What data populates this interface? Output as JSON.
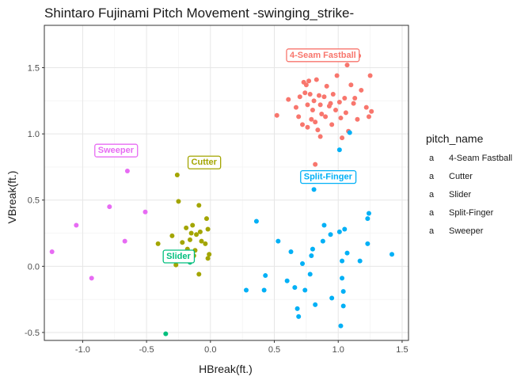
{
  "chart_data": {
    "type": "scatter",
    "title": "Shintaro Fujinami Pitch Movement -swinging_strike-",
    "xlabel": "HBreak(ft.)",
    "ylabel": "VBreak(ft.)",
    "xlim": [
      -1.3,
      1.55
    ],
    "ylim": [
      -0.56,
      1.82
    ],
    "xticks": [
      -1.0,
      -0.5,
      0.0,
      0.5,
      1.0,
      1.5
    ],
    "xtick_labels": [
      "-1.0",
      "-0.5",
      "0.0",
      "0.5",
      "1.0",
      "1.5"
    ],
    "yticks": [
      -0.5,
      0.0,
      0.5,
      1.0,
      1.5
    ],
    "ytick_labels": [
      "-0.5",
      "0.0",
      "0.5",
      "1.0",
      "1.5"
    ],
    "grid": true,
    "legend": {
      "title": "pitch_name",
      "position": "right"
    },
    "series": [
      {
        "name": "4-Seam Fastball",
        "color": "#F8766D",
        "label": {
          "text": "4-Seam Fastball",
          "x": 0.88,
          "y": 1.6
        },
        "points": [
          [
            1.16,
            1.59
          ],
          [
            1.07,
            1.52
          ],
          [
            1.25,
            1.44
          ],
          [
            0.52,
            1.14
          ],
          [
            0.61,
            1.26
          ],
          [
            0.67,
            1.2
          ],
          [
            0.69,
            1.13
          ],
          [
            0.72,
            1.07
          ],
          [
            0.74,
            1.31
          ],
          [
            0.75,
            1.37
          ],
          [
            0.76,
            1.22
          ],
          [
            0.77,
            1.4
          ],
          [
            0.78,
            1.3
          ],
          [
            0.79,
            1.11
          ],
          [
            0.8,
            1.18
          ],
          [
            0.81,
            1.25
          ],
          [
            0.82,
            1.09
          ],
          [
            0.83,
            1.41
          ],
          [
            0.84,
            1.03
          ],
          [
            0.85,
            1.29
          ],
          [
            0.86,
            1.22
          ],
          [
            0.87,
            1.15
          ],
          [
            0.89,
            1.28
          ],
          [
            0.9,
            1.13
          ],
          [
            0.91,
            1.36
          ],
          [
            0.93,
            1.21
          ],
          [
            0.95,
            1.07
          ],
          [
            0.96,
            1.3
          ],
          [
            0.98,
            1.18
          ],
          [
            0.99,
            1.44
          ],
          [
            1.01,
            1.24
          ],
          [
            1.02,
            1.12
          ],
          [
            1.03,
            0.97
          ],
          [
            1.05,
            1.27
          ],
          [
            1.06,
            1.16
          ],
          [
            1.08,
            1.02
          ],
          [
            1.1,
            1.37
          ],
          [
            1.12,
            1.23
          ],
          [
            1.15,
            1.11
          ],
          [
            1.18,
            1.33
          ],
          [
            1.22,
            1.2
          ],
          [
            1.26,
            1.17
          ],
          [
            1.24,
            1.13
          ],
          [
            0.73,
            1.39
          ],
          [
            0.7,
            1.28
          ],
          [
            0.86,
            0.98
          ],
          [
            0.82,
            0.77
          ],
          [
            0.76,
            1.05
          ],
          [
            0.94,
            1.23
          ],
          [
            1.13,
            1.27
          ]
        ]
      },
      {
        "name": "Cutter",
        "color": "#A3A500",
        "label": {
          "text": "Cutter",
          "x": -0.05,
          "y": 0.79
        },
        "points": [
          [
            -0.26,
            0.69
          ],
          [
            -0.25,
            0.49
          ],
          [
            -0.09,
            0.46
          ],
          [
            -0.03,
            0.36
          ],
          [
            -0.19,
            0.29
          ],
          [
            -0.14,
            0.31
          ],
          [
            -0.02,
            0.28
          ],
          [
            -0.11,
            0.24
          ],
          [
            -0.08,
            0.26
          ],
          [
            -0.16,
            0.2
          ],
          [
            -0.04,
            0.17
          ],
          [
            -0.22,
            0.18
          ],
          [
            -0.3,
            0.23
          ],
          [
            -0.12,
            0.12
          ],
          [
            -0.18,
            0.13
          ],
          [
            -0.13,
            0.08
          ],
          [
            -0.01,
            0.09
          ],
          [
            -0.02,
            0.06
          ],
          [
            -0.41,
            0.17
          ],
          [
            -0.24,
            0.05
          ],
          [
            -0.27,
            0.01
          ],
          [
            -0.09,
            -0.06
          ],
          [
            -0.15,
            0.25
          ],
          [
            -0.07,
            0.19
          ]
        ]
      },
      {
        "name": "Slider",
        "color": "#00BF7D",
        "label": {
          "text": "Slider",
          "x": -0.25,
          "y": 0.08
        },
        "points": [
          [
            -0.35,
            -0.51
          ],
          [
            -0.16,
            0.03
          ],
          [
            -0.28,
            0.06
          ]
        ]
      },
      {
        "name": "Split-Finger",
        "color": "#00B0F6",
        "label": {
          "text": "Split-Finger",
          "x": 0.92,
          "y": 0.68
        },
        "points": [
          [
            1.09,
            1.01
          ],
          [
            1.01,
            0.88
          ],
          [
            0.81,
            0.58
          ],
          [
            1.24,
            0.4
          ],
          [
            1.23,
            0.36
          ],
          [
            0.36,
            0.34
          ],
          [
            1.01,
            0.26
          ],
          [
            0.94,
            0.24
          ],
          [
            1.05,
            0.28
          ],
          [
            0.53,
            0.19
          ],
          [
            1.23,
            0.17
          ],
          [
            0.88,
            0.19
          ],
          [
            0.63,
            0.11
          ],
          [
            0.8,
            0.13
          ],
          [
            0.79,
            0.08
          ],
          [
            1.07,
            0.1
          ],
          [
            1.42,
            0.09
          ],
          [
            1.03,
            0.04
          ],
          [
            1.17,
            0.04
          ],
          [
            0.72,
            0.02
          ],
          [
            0.43,
            -0.07
          ],
          [
            0.6,
            -0.11
          ],
          [
            0.78,
            -0.06
          ],
          [
            1.03,
            -0.09
          ],
          [
            0.28,
            -0.18
          ],
          [
            0.42,
            -0.18
          ],
          [
            0.66,
            -0.16
          ],
          [
            0.74,
            -0.18
          ],
          [
            1.04,
            -0.19
          ],
          [
            0.95,
            -0.24
          ],
          [
            0.82,
            -0.29
          ],
          [
            0.68,
            -0.32
          ],
          [
            1.04,
            -0.3
          ],
          [
            0.69,
            -0.38
          ],
          [
            1.02,
            -0.45
          ],
          [
            0.89,
            0.31
          ]
        ]
      },
      {
        "name": "Sweeper",
        "color": "#E76BF3",
        "label": {
          "text": "Sweeper",
          "x": -0.74,
          "y": 0.88
        },
        "points": [
          [
            -0.65,
            0.72
          ],
          [
            -0.79,
            0.45
          ],
          [
            -0.51,
            0.41
          ],
          [
            -1.05,
            0.31
          ],
          [
            -0.67,
            0.19
          ],
          [
            -1.24,
            0.11
          ],
          [
            -0.93,
            -0.09
          ]
        ]
      }
    ]
  }
}
